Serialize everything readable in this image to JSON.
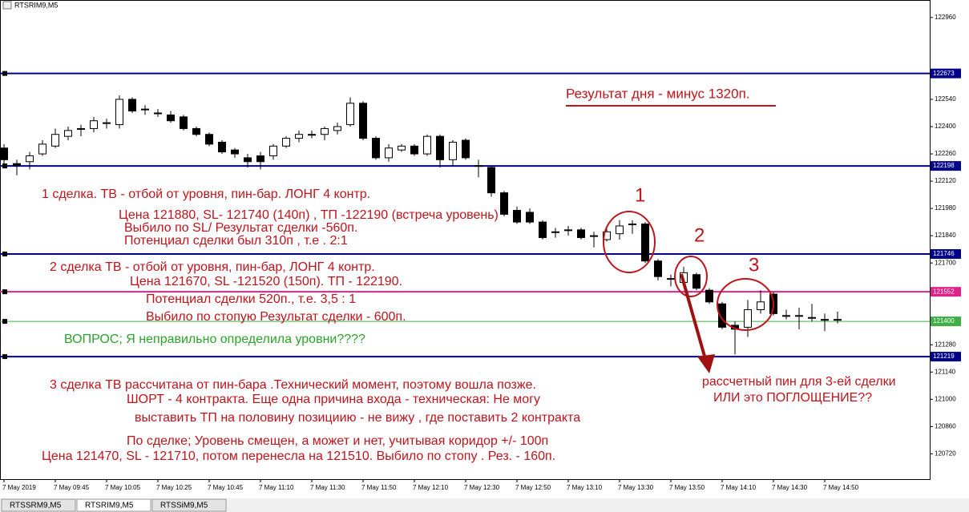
{
  "chart_data": {
    "type": "candlestick",
    "title": "RTSRIM9,M5",
    "categories": [
      "7 May 2019",
      null,
      null,
      null,
      "7 May 09:45",
      null,
      null,
      null,
      "7 May 10:05",
      null,
      null,
      null,
      "7 May 10:25",
      null,
      null,
      null,
      "7 May 10:45",
      null,
      null,
      null,
      "7 May 11:10",
      null,
      null,
      null,
      "7 May 11:30",
      null,
      null,
      null,
      "7 May 11:50",
      null,
      null,
      null,
      "7 May 12:10",
      null,
      null,
      null,
      "7 May 12:30",
      null,
      null,
      null,
      "7 May 12:50",
      null,
      null,
      null,
      "7 May 13:10",
      null,
      null,
      null,
      "7 May 13:30",
      null,
      null,
      null,
      "7 May 13:50",
      null,
      null,
      null,
      "7 May 14:10",
      null,
      null,
      null,
      "7 May 14:30",
      null,
      null,
      null,
      "7 May 14:50",
      null
    ],
    "open": [
      122290,
      122210,
      122220,
      122260,
      122300,
      122350,
      122390,
      122390,
      122420,
      122410,
      122540,
      122490,
      122470,
      122460,
      122450,
      122390,
      122360,
      122320,
      122280,
      122240,
      122250,
      122250,
      122300,
      122340,
      122360,
      122360,
      122380,
      122410,
      122520,
      122340,
      122240,
      122280,
      122300,
      122260,
      122350,
      122230,
      122330,
      122200,
      122190,
      122060,
      121970,
      121960,
      121910,
      121860,
      121870,
      121870,
      121840,
      121820,
      121850,
      121900,
      121900,
      121710,
      121620,
      121600,
      121640,
      121560,
      121490,
      121380,
      121370,
      121460,
      121540,
      121430,
      121430,
      121420,
      121410,
      121410
    ],
    "high": [
      122310,
      122230,
      122270,
      122330,
      122390,
      122400,
      122410,
      122450,
      122440,
      122560,
      122550,
      122510,
      122490,
      122480,
      122460,
      122400,
      122370,
      122330,
      122290,
      122260,
      122270,
      122310,
      122350,
      122380,
      122380,
      122400,
      122420,
      122550,
      122530,
      122350,
      122310,
      122310,
      122310,
      122360,
      122360,
      122330,
      122340,
      122230,
      122200,
      122070,
      121990,
      121980,
      121920,
      121880,
      121890,
      121880,
      121860,
      121890,
      121920,
      121920,
      121910,
      121720,
      121640,
      121680,
      121650,
      121570,
      121500,
      121400,
      121510,
      121560,
      121550,
      121460,
      121470,
      121490,
      121440,
      121450
    ],
    "low": [
      122190,
      122150,
      122180,
      122250,
      122290,
      122330,
      122350,
      122370,
      122390,
      122390,
      122470,
      122460,
      122450,
      122420,
      122380,
      122350,
      122300,
      122260,
      122240,
      122190,
      122180,
      122230,
      122290,
      122320,
      122340,
      122330,
      122360,
      122400,
      122330,
      122230,
      122220,
      122270,
      122250,
      122250,
      122190,
      122200,
      122230,
      122140,
      122040,
      121940,
      121900,
      121900,
      121820,
      121830,
      121840,
      121820,
      121780,
      121810,
      121820,
      121850,
      121700,
      121610,
      121580,
      121590,
      121560,
      121490,
      121360,
      121230,
      121320,
      121440,
      121430,
      121410,
      121360,
      121400,
      121350,
      121390
    ],
    "close": [
      122230,
      122200,
      122250,
      122310,
      122360,
      122380,
      122390,
      122430,
      122420,
      122540,
      122480,
      122490,
      122470,
      122430,
      122390,
      122360,
      122310,
      122270,
      122260,
      122220,
      122220,
      122300,
      122340,
      122360,
      122360,
      122390,
      122400,
      122520,
      122340,
      122240,
      122290,
      122300,
      122260,
      122350,
      122230,
      122320,
      122240,
      122200,
      122060,
      121950,
      121910,
      121910,
      121830,
      121860,
      121870,
      121830,
      121840,
      121860,
      121890,
      121900,
      121710,
      121630,
      121620,
      121650,
      121570,
      121500,
      121370,
      121360,
      121460,
      121500,
      121440,
      121430,
      121430,
      121420,
      121410,
      121410
    ],
    "ylim": [
      120590,
      123050
    ],
    "yticks": [
      122960,
      122540,
      122400,
      122260,
      122120,
      121980,
      121840,
      121700,
      121280,
      121140,
      121000,
      120860,
      120720
    ],
    "levels": [
      122673,
      122198,
      121746,
      121552,
      121400,
      121219
    ],
    "level_colors": [
      "#00008b",
      "#00008b",
      "#00008b",
      "#e0218a",
      "#3cb043",
      "#00008b"
    ],
    "annotations": [
      {
        "text": "Результат дня - минус 1320п.",
        "color": "#c0141c"
      },
      {
        "text": "1 сделка. ТВ - отбой от уровня, пин-бар. ЛОНГ 4 контр.",
        "color": "#c0141c"
      },
      {
        "text": "Цена 121880, SL- 121740 (140п) , ТП -122190 (встреча уровень)",
        "color": "#c0141c"
      },
      {
        "text": "Выбило по  SL/ Результат сделки  -560п.",
        "color": "#c0141c"
      },
      {
        "text": "Потенциал сделки был 310п , т.е . 2:1",
        "color": "#c0141c"
      },
      {
        "text": "2 сделка ТВ - отбой от уровня, пин-бар, ЛОНГ 4 контр.",
        "color": "#c0141c"
      },
      {
        "text": "Цена 121670, SL -121520 (150п).  ТП - 122190.",
        "color": "#c0141c"
      },
      {
        "text": "Потенциал сделки 520п., т.е. 3,5 : 1",
        "color": "#c0141c"
      },
      {
        "text": "Выбило по стопую Результат сделки -  600п.",
        "color": "#c0141c"
      },
      {
        "text": "ВОПРОС; Я неправильно определила уровни????",
        "color": "#2aa52a"
      },
      {
        "text": "3 сделка ТВ рассчитана от пин-бара .Технический момент, поэтому вошла позже.",
        "color": "#c0141c"
      },
      {
        "text": "ШОРТ - 4 контракта. Еще одна причина входа - техническая: Не могу",
        "color": "#c0141c"
      },
      {
        "text": "выставить ТП на половину позициию - не вижу , где поставить 2 контракта",
        "color": "#c0141c"
      },
      {
        "text": "По сделке; Уровень смещен, а может и нет, учитывая коридор +/- 100п",
        "color": "#c0141c"
      },
      {
        "text": "Цена 121470, SL - 121710, потом перенесла на 121510. Выбило по стопу . Рез. - 160п.",
        "color": "#c0141c"
      },
      {
        "text": "рассчетный пин для 3-ей сделки",
        "color": "#c0141c"
      },
      {
        "text": "ИЛИ это ПОГЛОЩЕНИЕ??",
        "color": "#c0141c"
      },
      {
        "text": "1",
        "color": "#c0141c"
      },
      {
        "text": "2",
        "color": "#c0141c"
      },
      {
        "text": "3",
        "color": "#c0141c"
      }
    ],
    "tabs": [
      "RTSSRM9,M5",
      "RTSRIM9,M5",
      "RTSSiM9,M5"
    ]
  }
}
